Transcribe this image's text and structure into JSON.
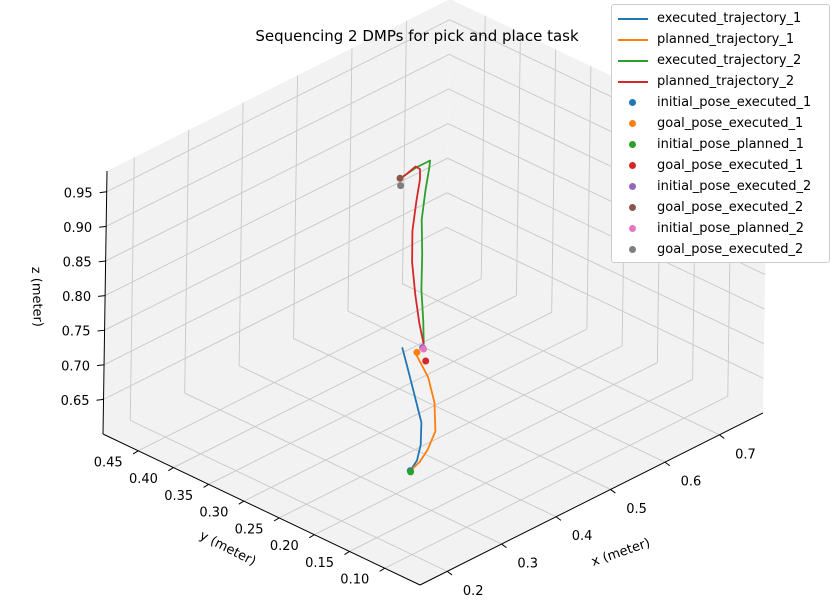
{
  "chart_data": {
    "type": "line",
    "projection": "3d",
    "title": "Sequencing 2 DMPs for pick and place task",
    "xlabel": "x (meter)",
    "ylabel": "y (meter)",
    "zlabel": "z (meter)",
    "xlim": [
      0.15,
      0.78
    ],
    "ylim": [
      0.05,
      0.5
    ],
    "zlim": [
      0.6,
      0.98
    ],
    "x_ticks": [
      "0.2",
      "0.3",
      "0.4",
      "0.5",
      "0.6",
      "0.7"
    ],
    "y_ticks": [
      "0.10",
      "0.15",
      "0.20",
      "0.25",
      "0.30",
      "0.35",
      "0.40",
      "0.45"
    ],
    "z_ticks": [
      "0.65",
      "0.70",
      "0.75",
      "0.80",
      "0.85",
      "0.90",
      "0.95"
    ],
    "grid": true,
    "legend_position": "top-right",
    "series": [
      {
        "name": "executed_trajectory_1",
        "kind": "line",
        "color": "#1f77b4",
        "points": [
          [
            0.356,
            0.223,
            0.6
          ],
          [
            0.38,
            0.232,
            0.601
          ],
          [
            0.41,
            0.25,
            0.603
          ],
          [
            0.45,
            0.28,
            0.605
          ],
          [
            0.5,
            0.33,
            0.607
          ],
          [
            0.54,
            0.37,
            0.608
          ],
          [
            0.57,
            0.4,
            0.608
          ]
        ]
      },
      {
        "name": "planned_trajectory_1",
        "kind": "line",
        "color": "#ff7f0e",
        "points": [
          [
            0.356,
            0.223,
            0.6
          ],
          [
            0.38,
            0.228,
            0.601
          ],
          [
            0.41,
            0.24,
            0.601
          ],
          [
            0.45,
            0.26,
            0.602
          ],
          [
            0.5,
            0.3,
            0.604
          ],
          [
            0.54,
            0.34,
            0.606
          ],
          [
            0.57,
            0.38,
            0.607
          ]
        ]
      },
      {
        "name": "executed_trajectory_2",
        "kind": "line",
        "color": "#2ca02c",
        "points": [
          [
            0.586,
            0.382,
            0.615
          ],
          [
            0.582,
            0.38,
            0.65
          ],
          [
            0.575,
            0.378,
            0.7
          ],
          [
            0.565,
            0.37,
            0.76
          ],
          [
            0.55,
            0.36,
            0.82
          ],
          [
            0.53,
            0.34,
            0.88
          ],
          [
            0.51,
            0.32,
            0.93
          ],
          [
            0.485,
            0.3,
            0.96
          ],
          [
            0.46,
            0.285,
            0.975
          ],
          [
            0.44,
            0.285,
            0.975
          ],
          [
            0.42,
            0.295,
            0.96
          ]
        ]
      },
      {
        "name": "planned_trajectory_2",
        "kind": "line",
        "color": "#d62728",
        "points": [
          [
            0.586,
            0.382,
            0.615
          ],
          [
            0.575,
            0.38,
            0.65
          ],
          [
            0.56,
            0.375,
            0.7
          ],
          [
            0.54,
            0.365,
            0.76
          ],
          [
            0.52,
            0.35,
            0.82
          ],
          [
            0.5,
            0.33,
            0.88
          ],
          [
            0.48,
            0.31,
            0.93
          ],
          [
            0.46,
            0.295,
            0.96
          ],
          [
            0.445,
            0.29,
            0.972
          ],
          [
            0.43,
            0.292,
            0.965
          ],
          [
            0.42,
            0.295,
            0.96
          ]
        ]
      },
      {
        "name": "initial_pose_executed_1",
        "kind": "scatter",
        "color": "#1f77b4",
        "points": [
          [
            0.356,
            0.223,
            0.6
          ]
        ]
      },
      {
        "name": "goal_pose_executed_1",
        "kind": "scatter",
        "color": "#ff7f0e",
        "points": [
          [
            0.575,
            0.383,
            0.607
          ]
        ]
      },
      {
        "name": "initial_pose_planned_1",
        "kind": "scatter",
        "color": "#2ca02c",
        "points": [
          [
            0.354,
            0.221,
            0.6
          ]
        ]
      },
      {
        "name": "goal_pose_executed_1",
        "kind": "scatter",
        "color": "#d62728",
        "points": [
          [
            0.568,
            0.365,
            0.606
          ]
        ]
      },
      {
        "name": "initial_pose_executed_2",
        "kind": "scatter",
        "color": "#9467bd",
        "points": [
          [
            0.588,
            0.385,
            0.608
          ]
        ]
      },
      {
        "name": "goal_pose_executed_2",
        "kind": "scatter",
        "color": "#8c564b",
        "points": [
          [
            0.422,
            0.294,
            0.962
          ]
        ]
      },
      {
        "name": "initial_pose_planned_2",
        "kind": "scatter",
        "color": "#e377c2",
        "points": [
          [
            0.586,
            0.382,
            0.608
          ]
        ]
      },
      {
        "name": "goal_pose_executed_2",
        "kind": "scatter",
        "color": "#7f7f7f",
        "points": [
          [
            0.418,
            0.29,
            0.955
          ]
        ]
      }
    ]
  }
}
